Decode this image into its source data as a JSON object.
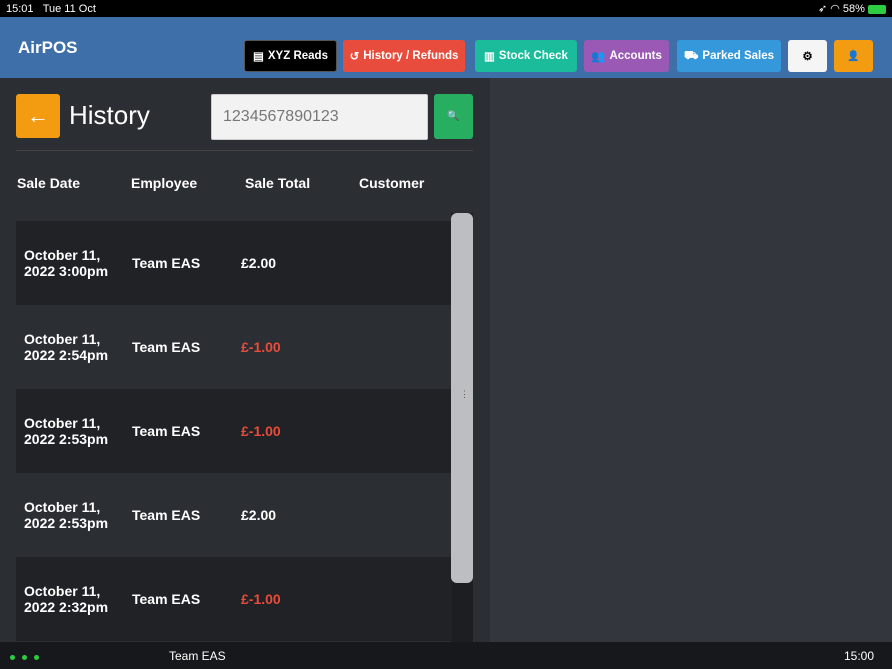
{
  "status_bar": {
    "time": "15:01",
    "date": "Tue 11 Oct",
    "battery": "58%"
  },
  "nav": {
    "brand": "AirPOS",
    "buttons": [
      {
        "label": "XYZ Reads",
        "icon": "list-icon",
        "color": "#000000"
      },
      {
        "label": "History / Refunds",
        "icon": "history-icon",
        "color": "#e74c3c"
      },
      {
        "label": "Stock Check",
        "icon": "barcode-icon",
        "color": "#1abc9c"
      },
      {
        "label": "Accounts",
        "icon": "users-icon",
        "color": "#9b59b6"
      },
      {
        "label": "Parked Sales",
        "icon": "road-icon",
        "color": "#3498db"
      }
    ],
    "settings_icon": "⚙",
    "user_icon": "👤"
  },
  "page": {
    "back": "←",
    "title": "History",
    "search_value": "1234567890123",
    "search_icon": "🔍"
  },
  "table": {
    "headers": [
      "Sale Date",
      "Employee",
      "Sale Total",
      "Customer"
    ],
    "rows": [
      {
        "date": "October 11, 2022 3:00pm",
        "employee": "Team EAS",
        "total": "£2.00",
        "customer": ""
      },
      {
        "date": "October 11, 2022 2:54pm",
        "employee": "Team EAS",
        "total": "£-1.00",
        "customer": ""
      },
      {
        "date": "October 11, 2022 2:53pm",
        "employee": "Team EAS",
        "total": "£-1.00",
        "customer": ""
      },
      {
        "date": "October 11, 2022 2:53pm",
        "employee": "Team EAS",
        "total": "£2.00",
        "customer": ""
      },
      {
        "date": "October 11, 2022 2:32pm",
        "employee": "Team EAS",
        "total": "£-1.00",
        "customer": ""
      }
    ]
  },
  "footer": {
    "user": "Team EAS",
    "time": "15:00"
  }
}
